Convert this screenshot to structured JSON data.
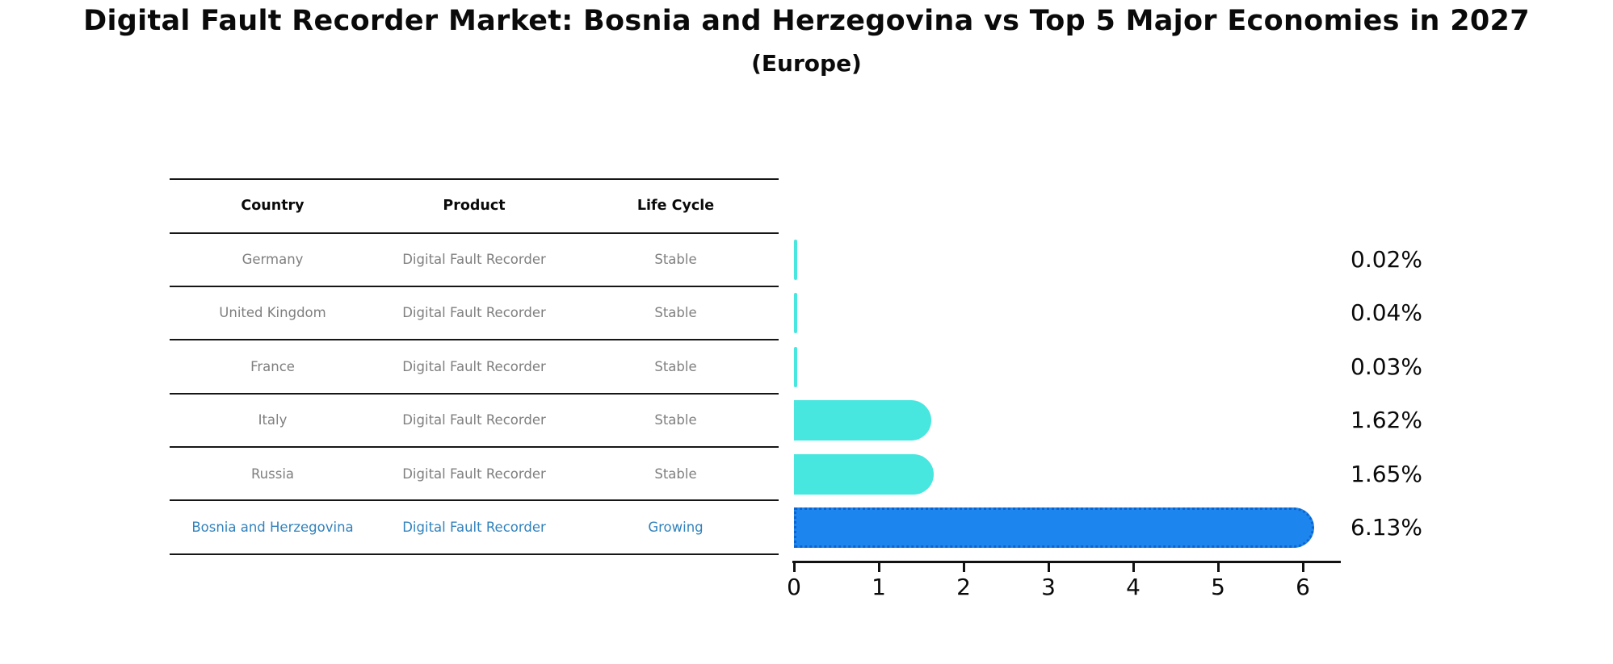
{
  "title": "Digital Fault Recorder Market: Bosnia and Herzegovina vs Top 5 Major Economies in 2027",
  "subtitle": "(Europe)",
  "table": {
    "headers": [
      "Country",
      "Product",
      "Life Cycle"
    ],
    "rows": [
      {
        "country": "Germany",
        "product": "Digital Fault Recorder",
        "life_cycle": "Stable"
      },
      {
        "country": "United Kingdom",
        "product": "Digital Fault Recorder",
        "life_cycle": "Stable"
      },
      {
        "country": "France",
        "product": "Digital Fault Recorder",
        "life_cycle": "Stable"
      },
      {
        "country": "Italy",
        "product": "Digital Fault Recorder",
        "life_cycle": "Stable"
      },
      {
        "country": "Russia",
        "product": "Digital Fault Recorder",
        "life_cycle": "Stable"
      },
      {
        "country": "Bosnia and Herzegovina",
        "product": "Digital Fault Recorder",
        "life_cycle": "Growing"
      }
    ]
  },
  "chart_data": {
    "type": "bar",
    "orientation": "horizontal",
    "title": "Digital Fault Recorder Market: Bosnia and Herzegovina vs Top 5 Major Economies in 2027",
    "subtitle": "(Europe)",
    "categories": [
      "Germany",
      "United Kingdom",
      "France",
      "Italy",
      "Russia",
      "Bosnia and Herzegovina"
    ],
    "values": [
      0.02,
      0.04,
      0.03,
      1.62,
      1.65,
      6.13
    ],
    "value_labels": [
      "0.02%",
      "0.04%",
      "0.03%",
      "1.62%",
      "1.65%",
      "6.13%"
    ],
    "x_ticks": [
      "0",
      "1",
      "2",
      "3",
      "4",
      "5",
      "6"
    ],
    "xlim": [
      0,
      6.45
    ],
    "grid": false,
    "legend": false,
    "highlight_index": 5,
    "bar_colors": [
      "#47e7df",
      "#47e7df",
      "#47e7df",
      "#47e7df",
      "#47e7df",
      "#1c86ee"
    ]
  },
  "colors": {
    "bar_default": "#47e7df",
    "bar_highlight": "#1c86ee",
    "bar_highlight_border": "#0f63cc",
    "table_text": "#7f7f7f",
    "highlight_text": "#3182bd",
    "axis": "#111111",
    "text": "#0a0a0a",
    "background": "#ffffff"
  }
}
